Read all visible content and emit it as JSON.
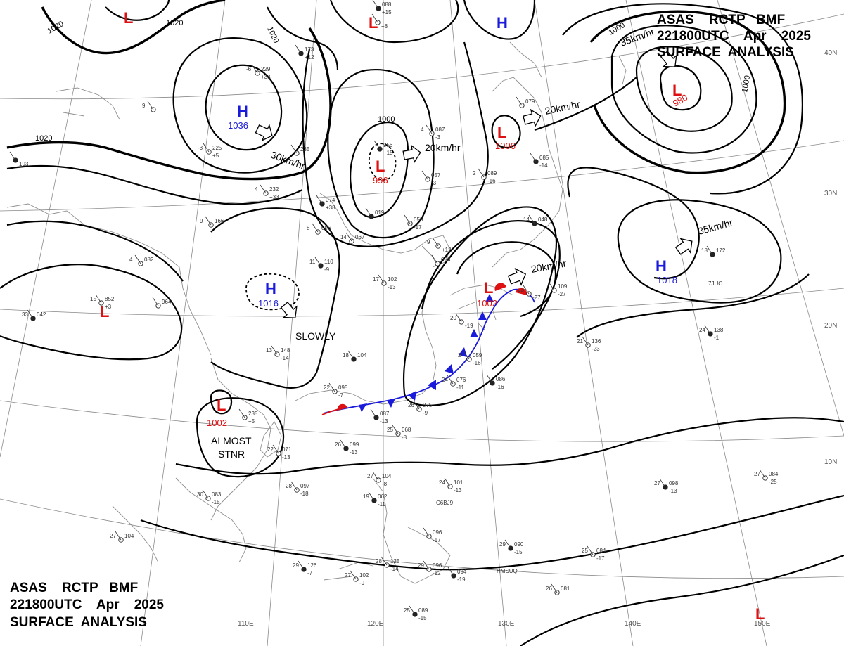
{
  "header_top": {
    "line1": "ASAS    RCTP   BMF",
    "line2": "221800UTC    Apr    2025",
    "line3": "SURFACE  ANALYSIS"
  },
  "header_bottom": {
    "line1": "ASAS    RCTP   BMF",
    "line2": "221800UTC    Apr    2025",
    "line3": "SURFACE  ANALYSIS"
  },
  "latitude_labels": [
    "40N",
    "30N",
    "20N",
    "10N"
  ],
  "longitude_labels": [
    "110E",
    "120E",
    "130E",
    "140E",
    "150E"
  ],
  "isobar_labels": [
    "1020",
    "1020",
    "1020",
    "1020",
    "1000",
    "1000",
    "1000"
  ],
  "pressure_systems": [
    {
      "type": "L",
      "value": ""
    },
    {
      "type": "L",
      "value": ""
    },
    {
      "type": "H",
      "value": ""
    },
    {
      "type": "H",
      "value": "1036"
    },
    {
      "type": "L",
      "value": "996"
    },
    {
      "type": "L",
      "value": "1006"
    },
    {
      "type": "L",
      "value": "980"
    },
    {
      "type": "H",
      "value": "1016"
    },
    {
      "type": "L",
      "value": "1002"
    },
    {
      "type": "H",
      "value": "1018"
    },
    {
      "type": "L",
      "value": "1002"
    },
    {
      "type": "L",
      "value": ""
    },
    {
      "type": "L",
      "value": ""
    }
  ],
  "movement_labels": [
    "30km/hr",
    "20km/hr",
    "20km/hr",
    "35km/hr",
    "35km/hr",
    "20km/hr",
    "SLOWLY"
  ],
  "stationary_text": {
    "line1": "ALMOST",
    "line2": "STNR"
  },
  "station_plots": [
    {
      "t": "",
      "p": "088",
      "d": "+15"
    },
    {
      "t": "",
      "p": "",
      "d": "+8"
    },
    {
      "t": "-6",
      "p": "229",
      "d": "+33"
    },
    {
      "t": "",
      "p": "173",
      "d": "+12"
    },
    {
      "t": "9",
      "p": "",
      "d": ""
    },
    {
      "t": "-3",
      "p": "225",
      "d": "+5"
    },
    {
      "t": "",
      "p": "",
      "d": "193"
    },
    {
      "t": "4",
      "p": "232",
      "d": "+33"
    },
    {
      "t": "",
      "p": "235",
      "d": ""
    },
    {
      "t": "",
      "p": "956",
      "d": "+15"
    },
    {
      "t": "4",
      "p": "087",
      "d": "-3"
    },
    {
      "t": "",
      "p": "079",
      "d": ""
    },
    {
      "t": "",
      "p": "085",
      "d": "-14"
    },
    {
      "t": "2",
      "p": "089",
      "d": "-16"
    },
    {
      "t": "",
      "p": "057",
      "d": "-3"
    },
    {
      "t": "",
      "p": "074",
      "d": "+38"
    },
    {
      "t": "8",
      "p": "096",
      "d": ""
    },
    {
      "t": "14",
      "p": "067",
      "d": ""
    },
    {
      "t": "",
      "p": "019",
      "d": ""
    },
    {
      "t": "",
      "p": "059",
      "d": "-17"
    },
    {
      "t": "9",
      "p": "",
      "d": "+12"
    },
    {
      "t": "14",
      "p": "048",
      "d": ""
    },
    {
      "t": "9",
      "p": "166",
      "d": ""
    },
    {
      "t": "4",
      "p": "082",
      "d": ""
    },
    {
      "t": "11",
      "p": "110",
      "d": "-9"
    },
    {
      "t": "17",
      "p": "102",
      "d": "-13"
    },
    {
      "t": "15",
      "p": "852",
      "d": "+3"
    },
    {
      "t": "33",
      "p": "042",
      "d": ""
    },
    {
      "t": "",
      "p": "964",
      "d": ""
    },
    {
      "t": "",
      "p": "058",
      "d": ""
    },
    {
      "t": "18",
      "p": "172",
      "d": ""
    },
    {
      "t": "",
      "p": "109",
      "d": "-27"
    },
    {
      "t": "13",
      "p": "148",
      "d": "-14"
    },
    {
      "t": "18",
      "p": "104",
      "d": ""
    },
    {
      "t": "24",
      "p": "059",
      "d": "-16"
    },
    {
      "t": "21",
      "p": "136",
      "d": "-23"
    },
    {
      "t": "24",
      "p": "138",
      "d": "-1"
    },
    {
      "t": "22",
      "p": "095",
      "d": "-7"
    },
    {
      "t": "24",
      "p": "076",
      "d": "-11"
    },
    {
      "t": "",
      "p": "086",
      "d": "-16"
    },
    {
      "t": "",
      "p": "235",
      "d": "+5"
    },
    {
      "t": "26",
      "p": "075",
      "d": "-9"
    },
    {
      "t": "",
      "p": "087",
      "d": "-13"
    },
    {
      "t": "25",
      "p": "068",
      "d": "-8"
    },
    {
      "t": "22",
      "p": "071",
      "d": "-13"
    },
    {
      "t": "26",
      "p": "099",
      "d": "-13"
    },
    {
      "t": "27",
      "p": "104",
      "d": "-8"
    },
    {
      "t": "24",
      "p": "101",
      "d": "-13"
    },
    {
      "t": "19",
      "p": "062",
      "d": "-11"
    },
    {
      "t": "28",
      "p": "097",
      "d": "-18"
    },
    {
      "t": "30",
      "p": "083",
      "d": "-15"
    },
    {
      "t": "27",
      "p": "098",
      "d": "-13"
    },
    {
      "t": "27",
      "p": "084",
      "d": "-25"
    },
    {
      "t": "",
      "p": "096",
      "d": "-17"
    },
    {
      "t": "29",
      "p": "090",
      "d": "-15"
    },
    {
      "t": "25",
      "p": "084",
      "d": "-17"
    },
    {
      "t": "27",
      "p": "104",
      "d": ""
    },
    {
      "t": "29",
      "p": "126",
      "d": "-7"
    },
    {
      "t": "28",
      "p": "125",
      "d": "-14"
    },
    {
      "t": "29",
      "p": "096",
      "d": "-12"
    },
    {
      "t": "",
      "p": "094",
      "d": "-19"
    },
    {
      "t": "27",
      "p": "102",
      "d": "-9"
    },
    {
      "t": "26",
      "p": "081",
      "d": ""
    },
    {
      "t": "25",
      "p": "089",
      "d": "-15"
    },
    {
      "t": "20",
      "p": "",
      "d": "-19"
    },
    {
      "t": "23",
      "p": "",
      "d": "-27"
    }
  ],
  "ship_ids": [
    "7JUO",
    "C6BJ9",
    "HMSUQ"
  ],
  "colors": {
    "high": "#1a1adb",
    "low": "#d11111",
    "isobar": "#000000",
    "coast": "#8f8f8f",
    "graticule": "#8a8a8a",
    "cold_front": "#1a1adb",
    "warm_front": "#d11111"
  }
}
